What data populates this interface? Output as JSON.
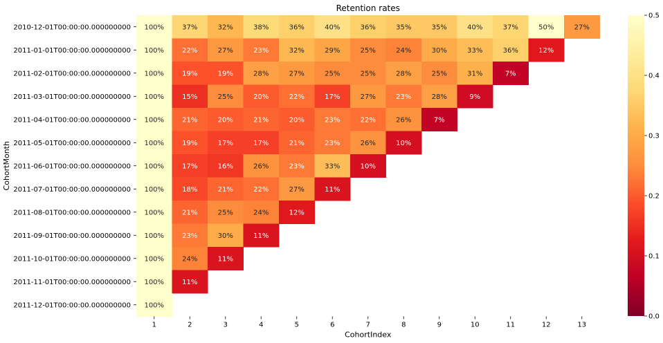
{
  "chart_data": {
    "type": "heatmap",
    "title": "Retention rates",
    "xlabel": "CohortIndex",
    "ylabel": "CohortMonth",
    "x_categories": [
      "1",
      "2",
      "3",
      "4",
      "5",
      "6",
      "7",
      "8",
      "9",
      "10",
      "11",
      "12",
      "13"
    ],
    "y_categories": [
      "2010-12-01T00:00:00.000000000",
      "2011-01-01T00:00:00.000000000",
      "2011-02-01T00:00:00.000000000",
      "2011-03-01T00:00:00.000000000",
      "2011-04-01T00:00:00.000000000",
      "2011-05-01T00:00:00.000000000",
      "2011-06-01T00:00:00.000000000",
      "2011-07-01T00:00:00.000000000",
      "2011-08-01T00:00:00.000000000",
      "2011-09-01T00:00:00.000000000",
      "2011-10-01T00:00:00.000000000",
      "2011-11-01T00:00:00.000000000",
      "2011-12-01T00:00:00.000000000"
    ],
    "values": [
      [
        1.0,
        0.37,
        0.32,
        0.38,
        0.36,
        0.4,
        0.36,
        0.35,
        0.35,
        0.4,
        0.37,
        0.5,
        0.27
      ],
      [
        1.0,
        0.22,
        0.27,
        0.23,
        0.32,
        0.29,
        0.25,
        0.24,
        0.3,
        0.33,
        0.36,
        0.12,
        null
      ],
      [
        1.0,
        0.19,
        0.19,
        0.28,
        0.27,
        0.25,
        0.25,
        0.28,
        0.25,
        0.31,
        0.07,
        null,
        null
      ],
      [
        1.0,
        0.15,
        0.25,
        0.2,
        0.22,
        0.17,
        0.27,
        0.23,
        0.28,
        0.09,
        null,
        null,
        null
      ],
      [
        1.0,
        0.21,
        0.2,
        0.21,
        0.2,
        0.23,
        0.22,
        0.26,
        0.07,
        null,
        null,
        null,
        null
      ],
      [
        1.0,
        0.19,
        0.17,
        0.17,
        0.21,
        0.23,
        0.26,
        0.1,
        null,
        null,
        null,
        null,
        null
      ],
      [
        1.0,
        0.17,
        0.16,
        0.26,
        0.23,
        0.33,
        0.1,
        null,
        null,
        null,
        null,
        null,
        null
      ],
      [
        1.0,
        0.18,
        0.21,
        0.22,
        0.27,
        0.11,
        null,
        null,
        null,
        null,
        null,
        null,
        null
      ],
      [
        1.0,
        0.21,
        0.25,
        0.24,
        0.12,
        null,
        null,
        null,
        null,
        null,
        null,
        null,
        null
      ],
      [
        1.0,
        0.23,
        0.3,
        0.11,
        null,
        null,
        null,
        null,
        null,
        null,
        null,
        null,
        null
      ],
      [
        1.0,
        0.24,
        0.11,
        null,
        null,
        null,
        null,
        null,
        null,
        null,
        null,
        null,
        null
      ],
      [
        1.0,
        0.11,
        null,
        null,
        null,
        null,
        null,
        null,
        null,
        null,
        null,
        null,
        null
      ],
      [
        1.0,
        null,
        null,
        null,
        null,
        null,
        null,
        null,
        null,
        null,
        null,
        null,
        null
      ]
    ],
    "value_range": [
      0.0,
      0.5
    ],
    "colormap": "YlOrRd_r",
    "colorbar_ticks": [
      "0.0",
      "0.1",
      "0.2",
      "0.3",
      "0.4",
      "0.5"
    ],
    "annotation_format": "percent",
    "legend": "colorbar-right",
    "grid": false
  }
}
